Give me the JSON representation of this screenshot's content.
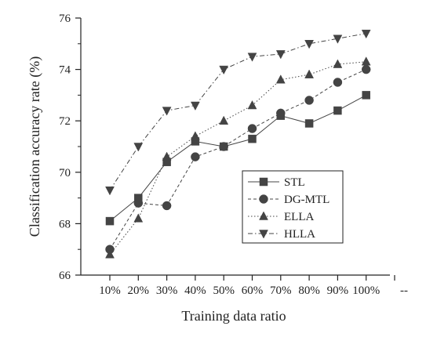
{
  "chart_data": {
    "type": "line",
    "title": "",
    "xlabel": "Training data ratio",
    "ylabel": "Classification accuracy rate (%)",
    "categories": [
      "10%",
      "20%",
      "30%",
      "40%",
      "50%",
      "60%",
      "70%",
      "80%",
      "90%",
      "100%"
    ],
    "extra_tick_label": "--",
    "ylim": [
      66,
      76
    ],
    "yticks": [
      "66",
      "68",
      "70",
      "72",
      "74",
      "76"
    ],
    "legend_position": "lower-right",
    "grid": false,
    "series": [
      {
        "name": "STL",
        "marker": "square",
        "dash": "solid",
        "values": [
          68.1,
          69.0,
          70.4,
          71.2,
          71.0,
          71.3,
          72.2,
          71.9,
          72.4,
          73.0
        ]
      },
      {
        "name": "DG-MTL",
        "marker": "circle",
        "dash": "dashed",
        "values": [
          67.0,
          68.8,
          68.7,
          70.6,
          71.0,
          71.7,
          72.3,
          72.8,
          73.5,
          74.0
        ]
      },
      {
        "name": "ELLA",
        "marker": "triangle-up",
        "dash": "dotted",
        "values": [
          66.8,
          68.2,
          70.6,
          71.4,
          72.0,
          72.6,
          73.6,
          73.8,
          74.2,
          74.3
        ]
      },
      {
        "name": "HLLA",
        "marker": "triangle-down",
        "dash": "dashdot",
        "values": [
          69.3,
          71.0,
          72.4,
          72.6,
          74.0,
          74.5,
          74.6,
          75.0,
          75.2,
          75.4
        ]
      }
    ]
  }
}
